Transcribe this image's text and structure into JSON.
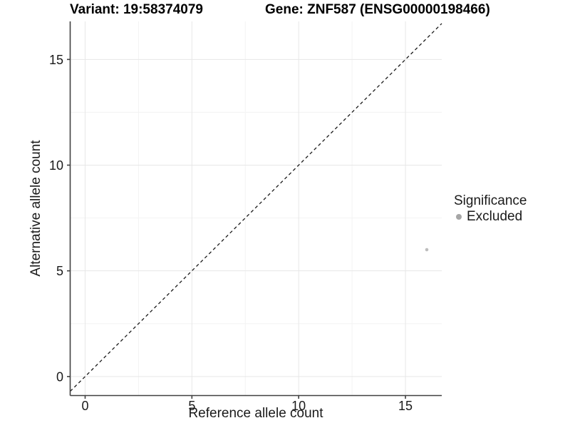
{
  "header": {
    "left_title": "Variant: 19:58374079",
    "right_title": "Gene: ZNF587 (ENSG00000198466)"
  },
  "chart_data": {
    "type": "scatter",
    "titles": {
      "left": "Variant: 19:58374079",
      "right": "Gene: ZNF587 (ENSG00000198466)"
    },
    "xlabel": "Reference allele count",
    "ylabel": "Alternative allele count",
    "xlim": [
      -0.7,
      16.7
    ],
    "ylim": [
      -0.9,
      16.8
    ],
    "x_ticks": [
      0,
      5,
      10,
      15
    ],
    "y_ticks": [
      0,
      5,
      10,
      15
    ],
    "minor_ticks": [
      2.5,
      7.5,
      12.5
    ],
    "grid": true,
    "identity_line": {
      "equation": "y = x",
      "style": "dashed",
      "color": "#1a1a1a"
    },
    "series": [
      {
        "name": "Excluded",
        "color": "#bdbdbd",
        "point_radius": 2.3,
        "points": [
          {
            "x": 16,
            "y": 6
          }
        ]
      }
    ],
    "legend": {
      "title": "Significance",
      "position": "right",
      "items": [
        {
          "label": "Excluded",
          "color": "#a6a6a6"
        }
      ]
    },
    "colors": {
      "background": "#ffffff",
      "grid_major": "#e7e7e7",
      "grid_minor": "#f3f3f3",
      "axis": "#404040",
      "text": "#1a1a1a"
    }
  }
}
